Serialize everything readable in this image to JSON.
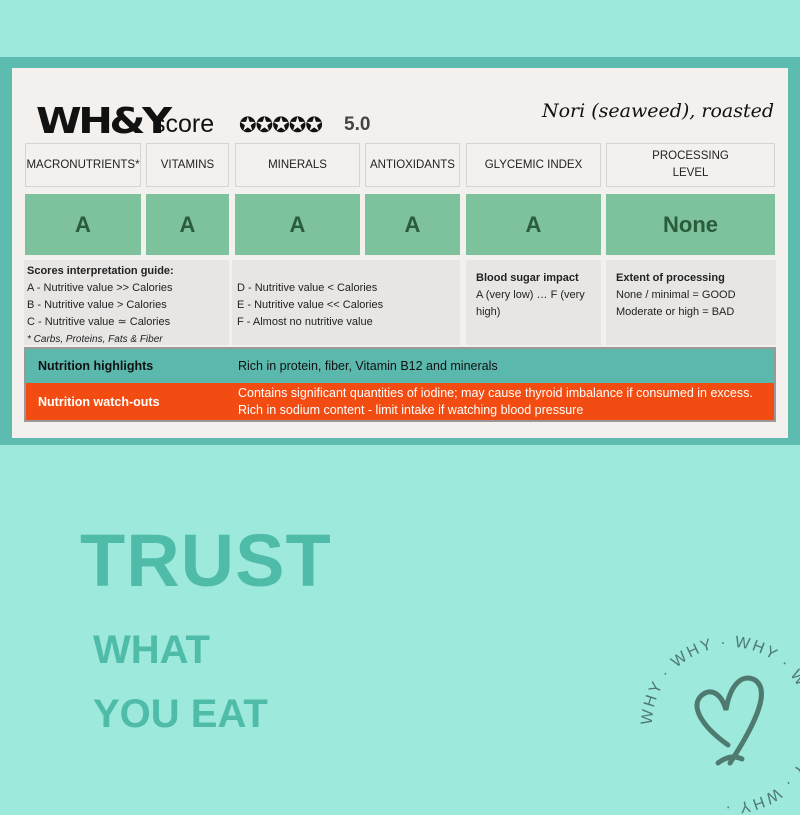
{
  "header": {
    "logo": "WH&Y",
    "score_label": "score",
    "stars": "✪✪✪✪✪",
    "rating": "5.0",
    "product": "Nori (seaweed), roasted"
  },
  "columns": [
    {
      "label": "MACRONUTRIENTS*",
      "grade": "A"
    },
    {
      "label": "VITAMINS",
      "grade": "A"
    },
    {
      "label": "MINERALS",
      "grade": "A"
    },
    {
      "label": "ANTIOXIDANTS",
      "grade": "A"
    },
    {
      "label": "GLYCEMIC INDEX",
      "grade": "A"
    },
    {
      "label": "PROCESSING LEVEL",
      "grade": "None"
    }
  ],
  "guide": {
    "title": "Scores interpretation guide:",
    "lines": [
      "A - Nutritive value >> Calories",
      "B - Nutritive value > Calories",
      "C - Nutritive value ≃ Calories"
    ],
    "footnote": "* Carbs, Proteins, Fats & Fiber",
    "lines2": [
      "D - Nutritive value < Calories",
      "E - Nutritive value << Calories",
      "F - Almost no nutritive value"
    ]
  },
  "glycemic": {
    "title": "Blood sugar impact",
    "text": "A (very low) … F (very high)"
  },
  "processing": {
    "title": "Extent of processing",
    "line1": "None / minimal = GOOD",
    "line2": "Moderate or high = BAD"
  },
  "highlights": {
    "label": "Nutrition highlights",
    "text": "Rich in protein, fiber, Vitamin B12 and minerals"
  },
  "watchouts": {
    "label": "Nutrition watch-outs",
    "text": "Contains significant quantities of iodine; may cause thyroid imbalance if consumed in excess. Rich in sodium content - limit intake if watching blood pressure"
  },
  "tagline": {
    "line1": "TRUST",
    "line2": "WHAT",
    "line3": "YOU EAT"
  },
  "badge": {
    "ring_text": "WHY · WHY · WHY · WHY · WHY · WHY ·"
  },
  "colors": {
    "background": "#9de9dc",
    "band": "#5dbcb0",
    "grade": "#7dc29c",
    "highlight": "#5bb8ad",
    "watchout": "#f34c12",
    "tagline": "#4fbcaa"
  }
}
